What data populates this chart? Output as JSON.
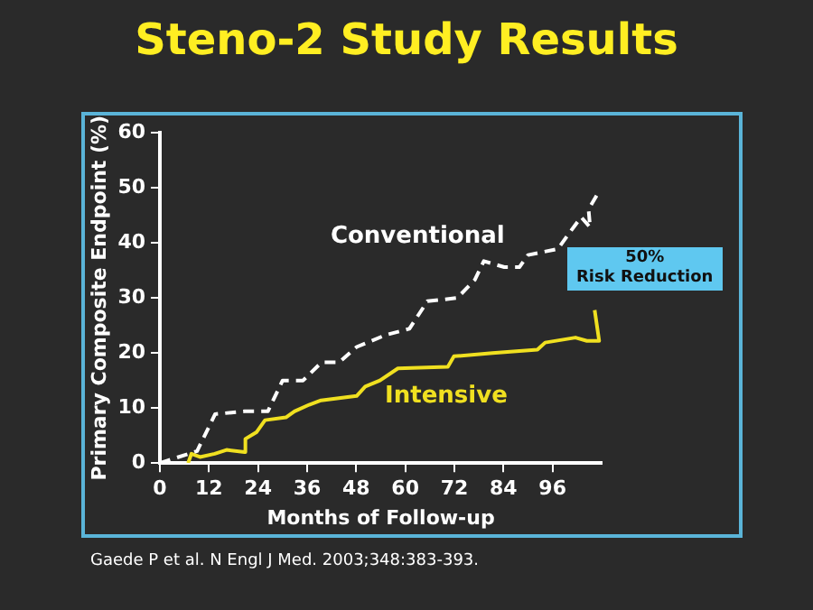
{
  "chart_data": {
    "type": "line",
    "title": "Steno-2 Study Results",
    "xlabel": "Months of Follow-up",
    "ylabel": "Primary Composite Endpoint (%)",
    "xlim": [
      0,
      108
    ],
    "xticks": [
      0,
      12,
      24,
      36,
      48,
      60,
      72,
      84,
      96
    ],
    "ylim": [
      0,
      60
    ],
    "yticks": [
      0,
      10,
      20,
      30,
      40,
      50,
      60
    ],
    "grid": false,
    "legend": false,
    "marker": "none",
    "series": [
      {
        "name": "Conventional",
        "color": "#ffffff",
        "line_style": "dashed",
        "x": [
          0,
          9.1,
          13.5,
          20.7,
          26.4,
          30,
          35,
          39.5,
          43.8,
          48.1,
          55.3,
          61,
          65.4,
          72.7,
          77,
          79.2,
          84.2,
          87.9,
          90,
          97.3,
          100,
          103,
          105.2,
          104.8,
          107.4
        ],
        "values": [
          0,
          2.2,
          8.9,
          9.4,
          9.4,
          15,
          15,
          18.3,
          18.3,
          21.1,
          23.3,
          24.4,
          29.4,
          30,
          33.3,
          36.7,
          35.6,
          35.6,
          37.8,
          38.9,
          41.7,
          44.7,
          42.8,
          46.1,
          49.4
        ]
      },
      {
        "name": "Intensive",
        "color": "#f0e020",
        "line_style": "solid",
        "x": [
          6.9,
          7.7,
          9.8,
          13.4,
          16.3,
          20.7,
          20.9,
          23.6,
          25.7,
          30.8,
          32.9,
          36.5,
          39.4,
          48.1,
          50.2,
          53.8,
          58.2,
          70.4,
          71.9,
          81.3,
          92.3,
          94.2,
          101.6,
          104.4,
          107.4,
          106.3
        ],
        "values": [
          0,
          1.7,
          1.1,
          1.7,
          2.4,
          2,
          4.4,
          5.6,
          7.8,
          8.3,
          9.4,
          10.6,
          11.4,
          12.2,
          13.9,
          15,
          17.2,
          17.5,
          19.4,
          20,
          20.6,
          21.9,
          22.8,
          22.2,
          22.2,
          27.8
        ]
      }
    ],
    "annotations": [
      "50%\nRisk Reduction",
      "Gaede P et al. N Engl J Med. 2003;348:383-393."
    ]
  }
}
